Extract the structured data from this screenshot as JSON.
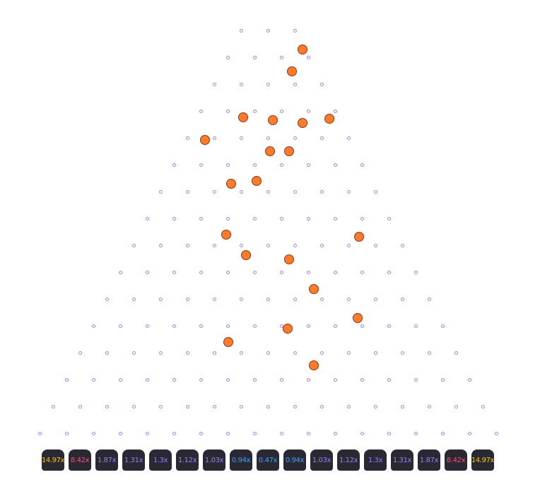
{
  "board": {
    "rows": 16,
    "first_row_pegs": 3,
    "peg_color": "#b07ff0",
    "ball_color": "#ff7a2d",
    "ball_count": 19
  },
  "multipliers": [
    {
      "label": "14.97x",
      "color": "#f5c518"
    },
    {
      "label": "8.42x",
      "color": "#ff4d6d"
    },
    {
      "label": "1.87x",
      "color": "#9b7bff"
    },
    {
      "label": "1.31x",
      "color": "#9b7bff"
    },
    {
      "label": "1.3x",
      "color": "#9b7bff"
    },
    {
      "label": "1.12x",
      "color": "#9b7bff"
    },
    {
      "label": "1.03x",
      "color": "#9b7bff"
    },
    {
      "label": "0.94x",
      "color": "#3aa0ff"
    },
    {
      "label": "0.47x",
      "color": "#3aa0ff"
    },
    {
      "label": "0.94x",
      "color": "#3aa0ff"
    },
    {
      "label": "1.03x",
      "color": "#9b7bff"
    },
    {
      "label": "1.12x",
      "color": "#9b7bff"
    },
    {
      "label": "1.3x",
      "color": "#9b7bff"
    },
    {
      "label": "1.31x",
      "color": "#9b7bff"
    },
    {
      "label": "1.87x",
      "color": "#9b7bff"
    },
    {
      "label": "8.42x",
      "color": "#ff4d6d"
    },
    {
      "label": "14.97x",
      "color": "#f5c518"
    }
  ]
}
